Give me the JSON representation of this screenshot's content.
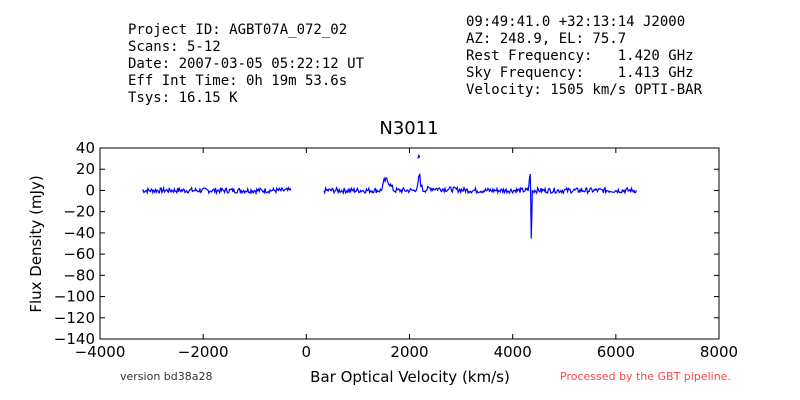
{
  "header": {
    "left": [
      "Project ID: AGBT07A_072_02",
      "Scans: 5-12",
      "Date: 2007-03-05 05:22:12 UT",
      "Eff Int Time: 0h 19m 53.6s",
      "Tsys: 16.15 K"
    ],
    "right": [
      "09:49:41.0 +32:13:14 J2000",
      "AZ: 248.9, EL: 75.7",
      "Rest Frequency:   1.420 GHz",
      "Sky Frequency:    1.413 GHz",
      "Velocity: 1505 km/s OPTI-BAR"
    ]
  },
  "footer": {
    "version": "version bd38a28",
    "processed": "Processed by the GBT pipeline."
  },
  "colors": {
    "line": "#0000ff",
    "processed": "#ff4444",
    "version": "#333333"
  },
  "chart_data": {
    "type": "line",
    "title": "N3011",
    "xlabel": "Bar Optical Velocity (km/s)",
    "ylabel": "Flux Density (mJy)",
    "xlim": [
      -4000,
      8000
    ],
    "ylim": [
      -140,
      40
    ],
    "xticks": [
      -4000,
      -2000,
      0,
      2000,
      4000,
      6000,
      8000
    ],
    "xtick_labels": [
      "−4000",
      "−2000",
      "0",
      "2000",
      "4000",
      "6000",
      "8000"
    ],
    "yticks": [
      40,
      20,
      0,
      -20,
      -40,
      -60,
      -80,
      -100,
      -120,
      -140
    ],
    "ytick_labels": [
      "40",
      "20",
      "0",
      "−20",
      "−40",
      "−60",
      "−80",
      "−100",
      "−120",
      "−140"
    ],
    "grid": false,
    "series": [
      {
        "segments": [
          {
            "x": [
              -3180,
              -2800,
              -2400,
              -2000,
              -1600,
              -1200,
              -800,
              -300
            ],
            "y": [
              0,
              0,
              0,
              0,
              0,
              0,
              0,
              0
            ]
          },
          {
            "x": [
              340,
              700,
              1100,
              1450,
              1510,
              1560,
              1620,
              1700,
              1900,
              2100,
              2160,
              2180,
              2200,
              2220,
              2260,
              2400,
              2800,
              3200,
              3600,
              4000,
              4300,
              4330,
              4340,
              4350,
              4360,
              4380,
              4500,
              5000,
              5500,
              6000,
              6400
            ],
            "y": [
              0,
              0,
              0,
              0,
              9,
              10,
              6,
              0,
              0,
              0,
              4,
              12,
              14,
              6,
              0,
              2,
              1,
              0,
              0,
              0,
              0,
              12,
              14,
              -8,
              -46,
              0,
              0,
              0,
              0,
              0,
              0
            ]
          },
          {
            "x": [
              2160,
              2180,
              2200
            ],
            "y": [
              30,
              33,
              31
            ]
          }
        ]
      }
    ]
  }
}
